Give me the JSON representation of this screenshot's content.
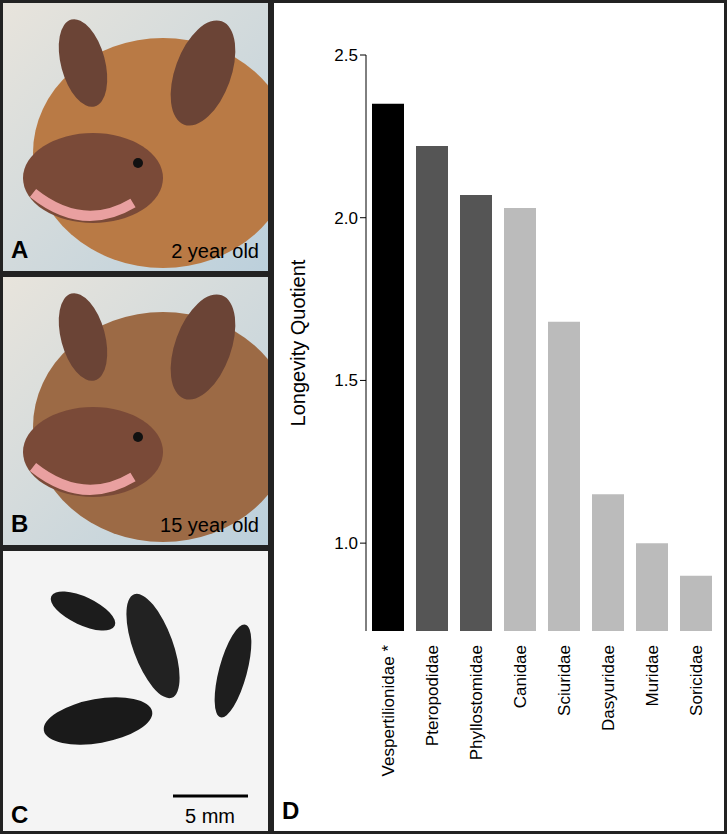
{
  "panels": {
    "A": {
      "label": "A",
      "caption": "2 year old"
    },
    "B": {
      "label": "B",
      "caption": "15 year old"
    },
    "C": {
      "label": "C",
      "scale_bar": "5 mm"
    },
    "D": {
      "label": "D"
    }
  },
  "chart_data": {
    "type": "bar",
    "y_label": "Longevity Quotient",
    "categories": [
      "Vespertilionidae *",
      "Pteropodidae",
      "Phyllostomidae",
      "Canidae",
      "Sciuridae",
      "Dasyuridae",
      "Muridae",
      "Soricidae"
    ],
    "values": [
      2.35,
      2.22,
      2.07,
      2.03,
      1.68,
      1.15,
      1.0,
      0.9
    ],
    "colors": [
      "#000000",
      "#555555",
      "#555555",
      "#bbbbbb",
      "#bbbbbb",
      "#bbbbbb",
      "#bbbbbb",
      "#bbbbbb"
    ],
    "ylim": [
      0.73,
      2.5
    ],
    "yticks": [
      {
        "value": 1,
        "label": "1.0"
      },
      1.5,
      {
        "value": 2,
        "label": "2.0"
      },
      2.5
    ],
    "grid": false
  }
}
